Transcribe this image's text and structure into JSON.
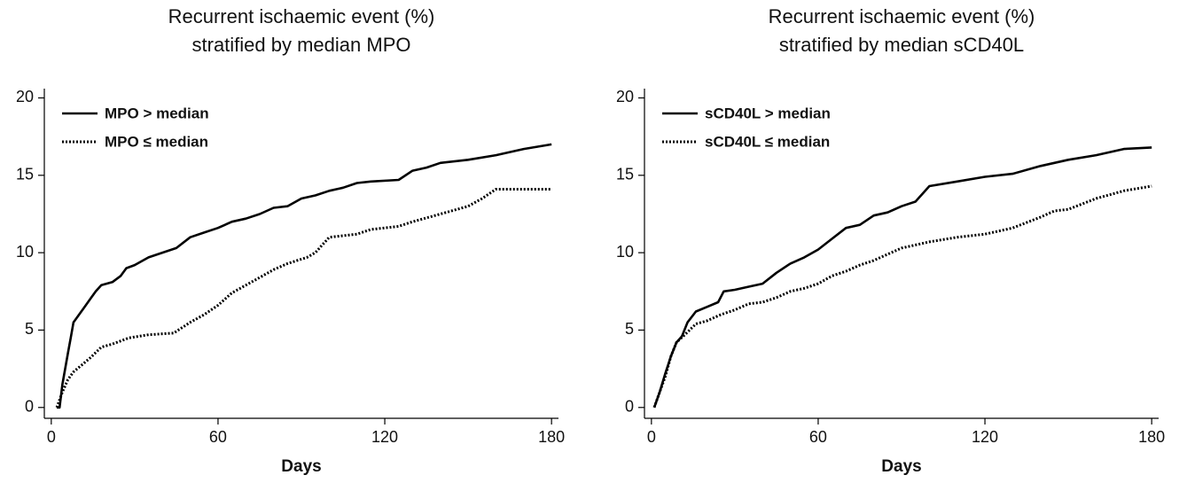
{
  "chart_data": [
    {
      "type": "line",
      "title": "Recurrent ischaemic event (%)",
      "subtitle": "stratified by median MPO",
      "xlabel": "Days",
      "xlim": [
        -2.5,
        182.5
      ],
      "xticks": [
        0,
        60,
        120,
        180
      ],
      "ylim": [
        -0.7,
        20.6
      ],
      "yticks": [
        0,
        5,
        10,
        15,
        20
      ],
      "legend": "upper left",
      "series": [
        {
          "name": "MPO > median",
          "color": "#000000",
          "style": "solid",
          "x": [
            2,
            3,
            4,
            5,
            6,
            7,
            8,
            10,
            12,
            14,
            16,
            18,
            22,
            25,
            27,
            30,
            35,
            40,
            45,
            50,
            55,
            60,
            65,
            70,
            75,
            80,
            85,
            90,
            95,
            100,
            105,
            110,
            115,
            125,
            130,
            135,
            140,
            150,
            160,
            165,
            170,
            180
          ],
          "values": [
            0,
            0,
            1.5,
            2.5,
            3.5,
            4.5,
            5.5,
            6,
            6.5,
            7,
            7.5,
            7.9,
            8.1,
            8.5,
            9,
            9.2,
            9.7,
            10,
            10.3,
            11,
            11.3,
            11.6,
            12,
            12.2,
            12.5,
            12.9,
            13,
            13.5,
            13.7,
            14,
            14.2,
            14.5,
            14.6,
            14.7,
            15.3,
            15.5,
            15.8,
            16,
            16.3,
            16.5,
            16.7,
            17
          ]
        },
        {
          "name": "MPO ≤ median",
          "color": "#000000",
          "style": "dotted",
          "x": [
            2,
            4,
            6,
            8,
            10,
            14,
            18,
            22,
            28,
            35,
            44,
            50,
            55,
            60,
            65,
            70,
            75,
            80,
            85,
            92,
            95,
            100,
            110,
            115,
            125,
            130,
            140,
            150,
            155,
            160,
            180
          ],
          "values": [
            0,
            1,
            1.8,
            2.3,
            2.6,
            3.2,
            3.9,
            4.1,
            4.5,
            4.7,
            4.8,
            5.5,
            6,
            6.6,
            7.4,
            7.9,
            8.4,
            8.9,
            9.3,
            9.7,
            10,
            11,
            11.2,
            11.5,
            11.7,
            12,
            12.5,
            13,
            13.5,
            14.1,
            14.1
          ]
        }
      ]
    },
    {
      "type": "line",
      "title": "Recurrent ischaemic event (%)",
      "subtitle": "stratified by median sCD40L",
      "xlabel": "Days",
      "xlim": [
        -2.5,
        182.5
      ],
      "xticks": [
        0,
        60,
        120,
        180
      ],
      "ylim": [
        -0.7,
        20.6
      ],
      "yticks": [
        0,
        5,
        10,
        15,
        20
      ],
      "legend": "upper left",
      "series": [
        {
          "name": "sCD40L > median",
          "color": "#000000",
          "style": "solid",
          "x": [
            1,
            3,
            5,
            7,
            9,
            11,
            13,
            16,
            20,
            24,
            26,
            30,
            35,
            40,
            45,
            50,
            55,
            60,
            65,
            70,
            75,
            80,
            85,
            90,
            95,
            100,
            110,
            120,
            130,
            140,
            150,
            160,
            170,
            180
          ],
          "values": [
            0,
            1,
            2.2,
            3.3,
            4.2,
            4.6,
            5.5,
            6.2,
            6.5,
            6.8,
            7.5,
            7.6,
            7.8,
            8,
            8.7,
            9.3,
            9.7,
            10.2,
            10.9,
            11.6,
            11.8,
            12.4,
            12.6,
            13,
            13.3,
            14.3,
            14.6,
            14.9,
            15.1,
            15.6,
            16,
            16.3,
            16.7,
            16.8
          ]
        },
        {
          "name": "sCD40L ≤ median",
          "color": "#000000",
          "style": "dotted",
          "x": [
            1,
            3,
            5,
            7,
            9,
            12,
            16,
            20,
            25,
            30,
            35,
            40,
            45,
            50,
            55,
            60,
            65,
            70,
            75,
            80,
            85,
            90,
            100,
            110,
            120,
            130,
            140,
            145,
            150,
            160,
            170,
            180
          ],
          "values": [
            0,
            1,
            2,
            3.3,
            4.2,
            4.7,
            5.4,
            5.6,
            6,
            6.3,
            6.7,
            6.8,
            7.1,
            7.5,
            7.7,
            8,
            8.5,
            8.8,
            9.2,
            9.5,
            9.9,
            10.3,
            10.7,
            11,
            11.2,
            11.6,
            12.3,
            12.7,
            12.8,
            13.5,
            14,
            14.3
          ]
        }
      ]
    }
  ]
}
